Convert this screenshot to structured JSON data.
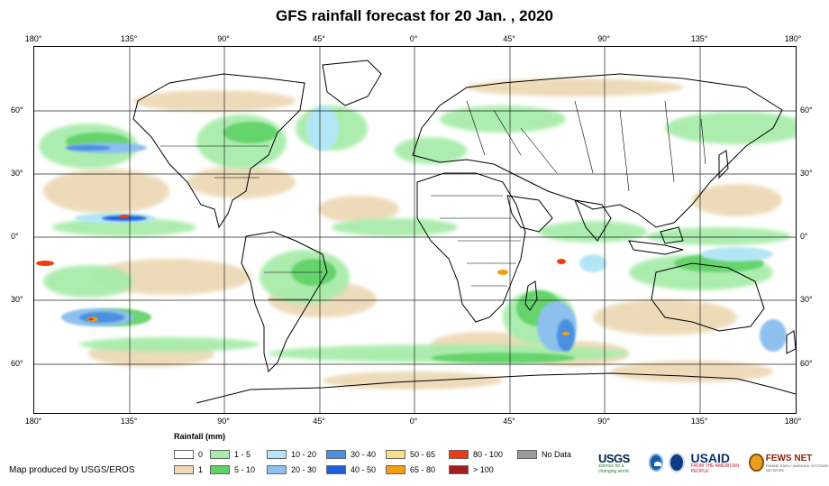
{
  "title": "GFS rainfall forecast for 20 Jan. , 2020",
  "lon_ticks": [
    "180°",
    "135°",
    "90°",
    "45°",
    "0°",
    "45°",
    "90°",
    "135°",
    "180°"
  ],
  "lat_ticks_left": [
    "60°",
    "30°",
    "0°",
    "30°",
    "60°"
  ],
  "lat_ticks_right": [
    "60°",
    "30°",
    "0°",
    "30°",
    "60°"
  ],
  "legend": {
    "title": "Rainfall (mm)",
    "items": [
      {
        "label": "0",
        "color": "#ffffff"
      },
      {
        "label": "1",
        "color": "#ecd9b6"
      },
      {
        "label": "1 - 5",
        "color": "#a8ecaa"
      },
      {
        "label": "5 - 10",
        "color": "#5fd266"
      },
      {
        "label": "10 - 20",
        "color": "#b3e6f5"
      },
      {
        "label": "20 - 30",
        "color": "#8ec0ef"
      },
      {
        "label": "30 - 40",
        "color": "#4a90e0"
      },
      {
        "label": "40 - 50",
        "color": "#1f5fd9"
      },
      {
        "label": "50 - 65",
        "color": "#fbe08a"
      },
      {
        "label": "65 - 80",
        "color": "#f2a00f"
      },
      {
        "label": "80 - 100",
        "color": "#f23a10"
      },
      {
        "label": "> 100",
        "color": "#a31f1f"
      },
      {
        "label": "No Data",
        "color": "#9a9a9a"
      }
    ]
  },
  "credit": "Map produced by USGS/EROS",
  "logos": {
    "usgs": "USGS",
    "usgs_tagline": "science for a changing world",
    "usaid": "USAID",
    "usaid_tagline": "FROM THE AMERICAN PEOPLE",
    "fews": "FEWS NET",
    "fews_tagline": "FAMINE EARLY WARNING SYSTEMS NETWORK"
  },
  "colors": {
    "land_outline": "#000000",
    "grid": "#000000",
    "background": "#ffffff"
  }
}
